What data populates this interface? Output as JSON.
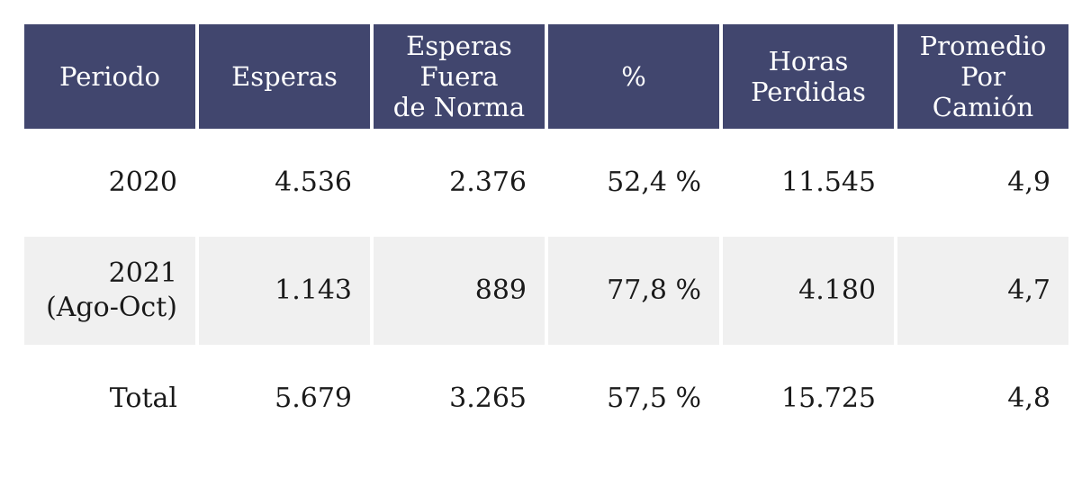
{
  "table": {
    "headers": [
      "Periodo",
      "Esperas",
      "Esperas\nFuera\nde Norma",
      "%",
      "Horas\nPerdidas",
      "Promedio\nPor\nCamión"
    ],
    "rows": [
      [
        "2020",
        "4.536",
        "2.376",
        "52,4 %",
        "11.545",
        "4,9"
      ],
      [
        "2021\n(Ago-Oct)",
        "1.143",
        "889",
        "77,8 %",
        "4.180",
        "4,7"
      ],
      [
        "Total",
        "5.679",
        "3.265",
        "57,5 %",
        "15.725",
        "4,8"
      ]
    ]
  },
  "colors": {
    "header_bg": "#41466e",
    "header_text": "#ffffff",
    "shaded_row": "#f0f0f0"
  }
}
